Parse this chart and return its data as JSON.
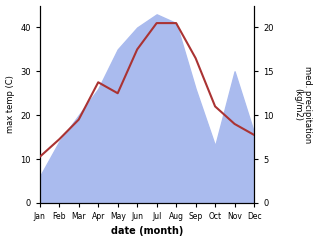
{
  "months": [
    "Jan",
    "Feb",
    "Mar",
    "Apr",
    "May",
    "Jun",
    "Jul",
    "Aug",
    "Sep",
    "Oct",
    "Nov",
    "Dec"
  ],
  "temp": [
    10.5,
    14.5,
    19.0,
    27.5,
    25.0,
    35.0,
    41.0,
    41.0,
    33.0,
    22.0,
    18.0,
    15.5
  ],
  "precip": [
    3.0,
    7.0,
    10.0,
    13.0,
    17.5,
    20.0,
    21.5,
    20.5,
    13.0,
    6.5,
    15.0,
    8.0
  ],
  "temp_color": "#aa3333",
  "precip_color": "#aabbee",
  "temp_ylim": [
    0,
    45
  ],
  "precip_ylim": [
    0,
    22.5
  ],
  "temp_yticks": [
    0,
    10,
    20,
    30,
    40
  ],
  "precip_yticks": [
    0,
    5,
    10,
    15,
    20
  ],
  "ylabel_left": "max temp (C)",
  "ylabel_right": "med. precipitation\n(kg/m2)",
  "xlabel": "date (month)",
  "bg_color": "#ffffff",
  "fig_width": 3.18,
  "fig_height": 2.42
}
